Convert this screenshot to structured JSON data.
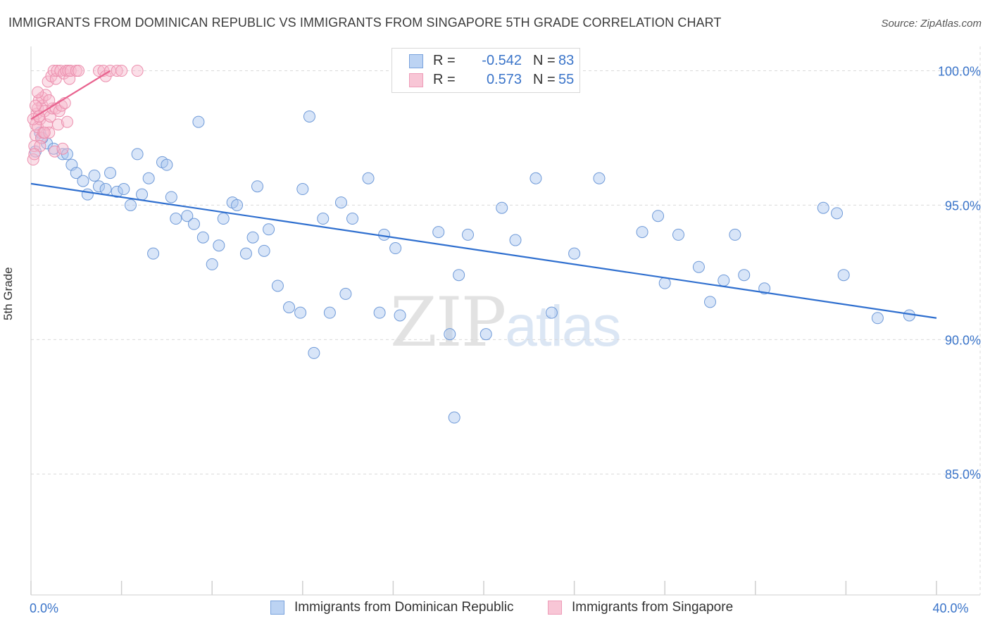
{
  "title": "IMMIGRANTS FROM DOMINICAN REPUBLIC VS IMMIGRANTS FROM SINGAPORE 5TH GRADE CORRELATION CHART",
  "source": "Source: ZipAtlas.com",
  "watermark": {
    "zip": "ZIP",
    "atlas": "atlas"
  },
  "colors": {
    "blue_fill": "#a9c6f0",
    "blue_stroke": "#6f9ad8",
    "blue_line": "#2f6fcf",
    "pink_fill": "#f6b8cc",
    "pink_stroke": "#ec8fae",
    "pink_line": "#e8628e",
    "axis_text": "#3a74c9",
    "grid": "#d9d9d9"
  },
  "legend": {
    "rows": [
      {
        "r_label": "R =",
        "r_value": "-0.542",
        "n_label": "N =",
        "n_value": "83",
        "series": "blue"
      },
      {
        "r_label": "R =",
        "r_value": "0.573",
        "n_label": "N =",
        "n_value": "55",
        "series": "pink"
      }
    ]
  },
  "bottom_legend": [
    {
      "label": "Immigrants from Dominican Republic",
      "series": "blue"
    },
    {
      "label": "Immigrants from Singapore",
      "series": "pink"
    }
  ],
  "chart_data": {
    "type": "scatter",
    "title": "IMMIGRANTS FROM DOMINICAN REPUBLIC VS IMMIGRANTS FROM SINGAPORE 5TH GRADE CORRELATION CHART",
    "xlabel": "",
    "ylabel": "5th Grade",
    "xlim": [
      0,
      40
    ],
    "ylim": [
      80.5,
      100.8
    ],
    "x_tick_labels": [
      {
        "value": 0,
        "label": "0.0%"
      },
      {
        "value": 40,
        "label": "40.0%"
      }
    ],
    "x_minor_ticks": [
      0,
      4,
      8,
      12,
      16,
      20,
      24,
      28,
      32,
      36,
      40
    ],
    "y_tick_labels": [
      {
        "value": 100,
        "label": "100.0%"
      },
      {
        "value": 95,
        "label": "95.0%"
      },
      {
        "value": 90,
        "label": "90.0%"
      },
      {
        "value": 85,
        "label": "85.0%"
      }
    ],
    "grid": true,
    "legend_position": "top-center",
    "series": [
      {
        "name": "Immigrants from Dominican Republic",
        "color": "blue",
        "trend": {
          "x": [
            0,
            40
          ],
          "y": [
            95.8,
            90.8
          ]
        },
        "points": [
          [
            0.4,
            97.7
          ],
          [
            0.7,
            97.3
          ],
          [
            1.0,
            97.1
          ],
          [
            1.4,
            96.9
          ],
          [
            1.6,
            96.9
          ],
          [
            1.8,
            96.5
          ],
          [
            2.0,
            96.2
          ],
          [
            2.3,
            95.9
          ],
          [
            2.5,
            95.4
          ],
          [
            2.8,
            96.1
          ],
          [
            3.0,
            95.7
          ],
          [
            3.3,
            95.6
          ],
          [
            3.5,
            96.2
          ],
          [
            3.8,
            95.5
          ],
          [
            4.1,
            95.6
          ],
          [
            4.4,
            95.0
          ],
          [
            4.7,
            96.9
          ],
          [
            4.9,
            95.4
          ],
          [
            5.2,
            96.0
          ],
          [
            5.4,
            93.2
          ],
          [
            5.8,
            96.6
          ],
          [
            6.0,
            96.5
          ],
          [
            6.2,
            95.3
          ],
          [
            6.4,
            94.5
          ],
          [
            6.9,
            94.6
          ],
          [
            7.2,
            94.3
          ],
          [
            7.4,
            98.1
          ],
          [
            7.6,
            93.8
          ],
          [
            8.0,
            92.8
          ],
          [
            8.3,
            93.5
          ],
          [
            8.5,
            94.5
          ],
          [
            8.9,
            95.1
          ],
          [
            9.1,
            95.0
          ],
          [
            9.5,
            93.2
          ],
          [
            9.8,
            93.8
          ],
          [
            10.0,
            95.7
          ],
          [
            10.3,
            93.3
          ],
          [
            10.5,
            94.1
          ],
          [
            10.9,
            92.0
          ],
          [
            11.4,
            91.2
          ],
          [
            11.9,
            91.0
          ],
          [
            12.0,
            95.6
          ],
          [
            12.3,
            98.3
          ],
          [
            12.5,
            89.5
          ],
          [
            12.9,
            94.5
          ],
          [
            13.2,
            91.0
          ],
          [
            13.7,
            95.1
          ],
          [
            13.9,
            91.7
          ],
          [
            14.2,
            94.5
          ],
          [
            14.9,
            96.0
          ],
          [
            15.4,
            91.0
          ],
          [
            15.6,
            93.9
          ],
          [
            16.1,
            93.4
          ],
          [
            16.3,
            90.9
          ],
          [
            18.0,
            94.0
          ],
          [
            18.5,
            90.2
          ],
          [
            18.7,
            87.1
          ],
          [
            18.9,
            92.4
          ],
          [
            19.3,
            93.9
          ],
          [
            20.1,
            90.2
          ],
          [
            20.8,
            94.9
          ],
          [
            21.4,
            93.7
          ],
          [
            22.3,
            96.0
          ],
          [
            23.0,
            91.0
          ],
          [
            24.0,
            93.2
          ],
          [
            25.1,
            96.0
          ],
          [
            27.0,
            94.0
          ],
          [
            27.7,
            94.6
          ],
          [
            28.0,
            92.1
          ],
          [
            28.6,
            93.9
          ],
          [
            29.5,
            92.7
          ],
          [
            30.0,
            91.4
          ],
          [
            30.6,
            92.2
          ],
          [
            31.1,
            93.9
          ],
          [
            31.5,
            92.4
          ],
          [
            32.4,
            91.9
          ],
          [
            35.0,
            94.9
          ],
          [
            35.6,
            94.7
          ],
          [
            35.9,
            92.4
          ],
          [
            37.4,
            90.8
          ],
          [
            38.8,
            90.9
          ],
          [
            0.2,
            97.0
          ],
          [
            0.5,
            97.5
          ]
        ]
      },
      {
        "name": "Immigrants from Singapore",
        "color": "pink",
        "trend": {
          "x": [
            0,
            3.5
          ],
          "y": [
            98.2,
            100.0
          ]
        },
        "points": [
          [
            0.1,
            96.7
          ],
          [
            0.15,
            97.2
          ],
          [
            0.2,
            97.6
          ],
          [
            0.2,
            98.0
          ],
          [
            0.25,
            98.4
          ],
          [
            0.3,
            98.6
          ],
          [
            0.3,
            97.9
          ],
          [
            0.35,
            98.9
          ],
          [
            0.4,
            98.2
          ],
          [
            0.45,
            97.5
          ],
          [
            0.5,
            98.7
          ],
          [
            0.5,
            99.0
          ],
          [
            0.55,
            97.7
          ],
          [
            0.6,
            98.5
          ],
          [
            0.65,
            99.1
          ],
          [
            0.7,
            98.0
          ],
          [
            0.75,
            99.6
          ],
          [
            0.8,
            97.7
          ],
          [
            0.85,
            98.3
          ],
          [
            0.9,
            99.8
          ],
          [
            0.95,
            98.6
          ],
          [
            1.0,
            100.0
          ],
          [
            1.05,
            97.0
          ],
          [
            1.1,
            98.6
          ],
          [
            1.1,
            99.7
          ],
          [
            1.15,
            100.0
          ],
          [
            1.2,
            98.0
          ],
          [
            1.25,
            98.5
          ],
          [
            1.3,
            100.0
          ],
          [
            1.35,
            98.7
          ],
          [
            1.4,
            97.1
          ],
          [
            1.45,
            99.9
          ],
          [
            1.5,
            98.8
          ],
          [
            1.55,
            100.0
          ],
          [
            1.6,
            98.1
          ],
          [
            1.65,
            100.0
          ],
          [
            1.7,
            99.7
          ],
          [
            1.75,
            100.0
          ],
          [
            2.0,
            100.0
          ],
          [
            2.1,
            100.0
          ],
          [
            3.0,
            100.0
          ],
          [
            3.2,
            100.0
          ],
          [
            3.3,
            99.8
          ],
          [
            3.5,
            100.0
          ],
          [
            3.8,
            100.0
          ],
          [
            4.0,
            100.0
          ],
          [
            4.7,
            100.0
          ],
          [
            0.1,
            98.2
          ],
          [
            0.2,
            98.7
          ],
          [
            0.3,
            99.2
          ],
          [
            0.4,
            97.2
          ],
          [
            0.6,
            97.7
          ],
          [
            0.8,
            98.9
          ],
          [
            0.15,
            96.9
          ],
          [
            0.35,
            98.3
          ]
        ]
      }
    ]
  }
}
